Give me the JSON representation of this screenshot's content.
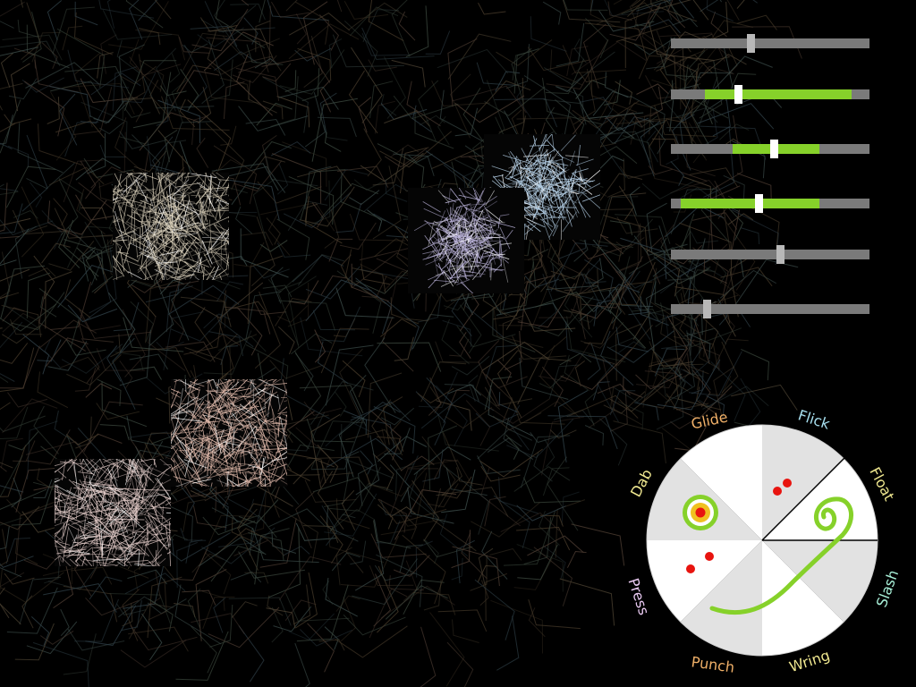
{
  "colors": {
    "background": "#000000",
    "slider_track": "#7a7a7a",
    "slider_active": "#86d12a",
    "thumb_plain": "#b8b8b8",
    "thumb_active": "#ffffff",
    "marker_red": "#e8140f",
    "wheel_light": "#ffffff",
    "wheel_dark": "#e2e2e2"
  },
  "sliders": [
    {
      "value": 0.4,
      "active": false
    },
    {
      "value": 0.34,
      "active": true,
      "range": [
        0.17,
        0.91
      ]
    },
    {
      "value": 0.52,
      "active": true,
      "range": [
        0.31,
        0.75
      ]
    },
    {
      "value": 0.44,
      "active": true,
      "range": [
        0.05,
        0.75
      ]
    },
    {
      "value": 0.55,
      "active": false
    },
    {
      "value": 0.18,
      "active": false
    }
  ],
  "wheel": {
    "labels": [
      {
        "key": "glide",
        "text": "Glide",
        "color": "#f0b068"
      },
      {
        "key": "flick",
        "text": "Flick",
        "color": "#a8e0f0"
      },
      {
        "key": "float",
        "text": "Float",
        "color": "#f0e890"
      },
      {
        "key": "slash",
        "text": "Slash",
        "color": "#a8f0d8"
      },
      {
        "key": "wring",
        "text": "Wring",
        "color": "#f0e890"
      },
      {
        "key": "punch",
        "text": "Punch",
        "color": "#f0b068"
      },
      {
        "key": "press",
        "text": "Press",
        "color": "#e8c8f0"
      },
      {
        "key": "dab",
        "text": "Dab",
        "color": "#f0e890"
      }
    ]
  },
  "brush_patches": [
    {
      "name": "patch-beige",
      "color": "#d8ceb8"
    },
    {
      "name": "patch-blue",
      "color": "#bcd8f0"
    },
    {
      "name": "patch-purple",
      "color": "#c0b8e0"
    },
    {
      "name": "patch-pink",
      "color": "#e8c0b0"
    },
    {
      "name": "patch-white-pink",
      "color": "#e8d0cc"
    }
  ]
}
